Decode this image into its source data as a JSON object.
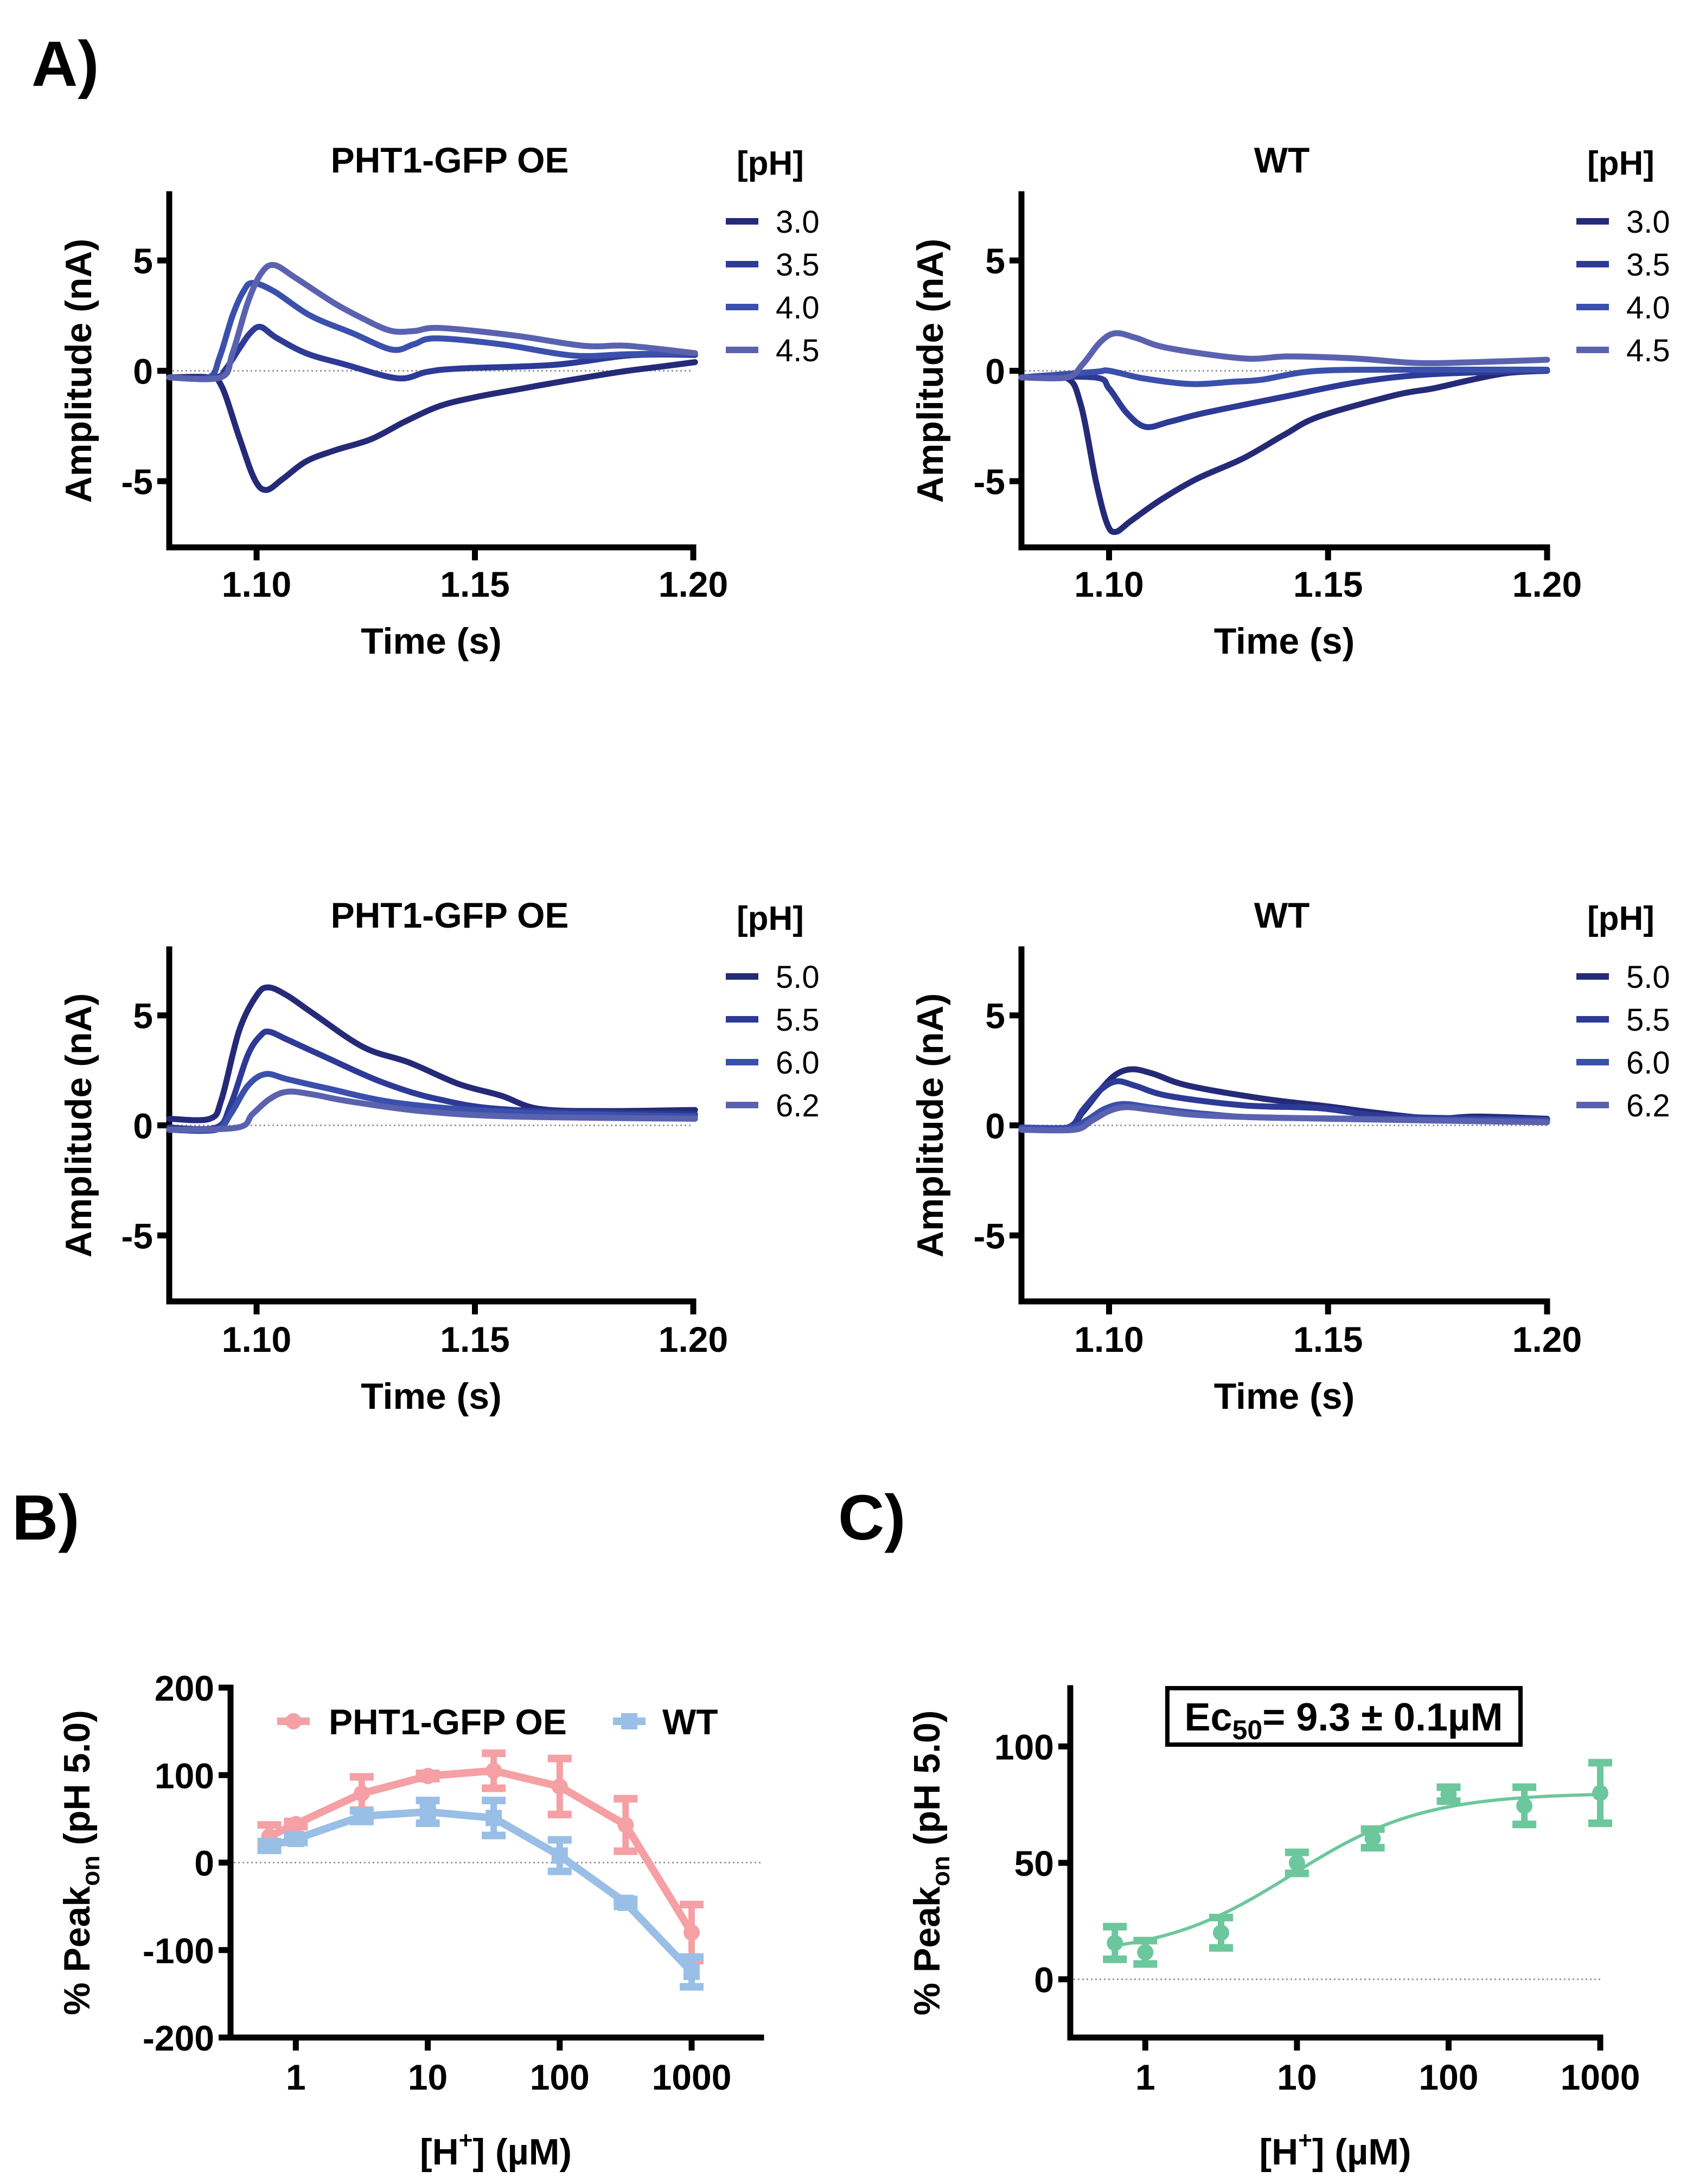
{
  "figure_labels": {
    "A": "A)",
    "B": "B)",
    "C": "C)"
  },
  "chart_data": [
    {
      "id": "A1",
      "type": "line",
      "title": "PHT1-GFP OE",
      "xlabel": "Time (s)",
      "ylabel": "Amplitude (nA)",
      "xlim": [
        1.08,
        1.2
      ],
      "ylim": [
        -8,
        8
      ],
      "xticks": [
        1.1,
        1.15,
        1.2
      ],
      "xtick_labels": [
        "1.10",
        "1.15",
        "1.20"
      ],
      "yticks": [
        5,
        0,
        -5
      ],
      "ytick_labels": [
        "5",
        "0",
        "-5"
      ],
      "zero_line": true,
      "legend_title": "[pH]",
      "legend_position": "right",
      "series": [
        {
          "name": "3.0",
          "color": "#252a78",
          "x": [
            1.08,
            1.089,
            1.092,
            1.096,
            1.0995,
            1.1022,
            1.106,
            1.1114,
            1.118,
            1.1262,
            1.134,
            1.1419,
            1.15,
            1.1593,
            1.168,
            1.1769,
            1.185,
            1.193,
            1.2004
          ],
          "y": [
            -0.3,
            -0.3,
            -0.7,
            -3.0,
            -4.9,
            -5.4,
            -4.9,
            -4.1,
            -3.6,
            -3.1,
            -2.3,
            -1.6,
            -1.2,
            -0.86,
            -0.55,
            -0.25,
            0.0,
            0.2,
            0.39
          ]
        },
        {
          "name": "3.5",
          "color": "#2d3a96",
          "x": [
            1.08,
            1.0905,
            1.093,
            1.096,
            1.0985,
            1.1009,
            1.1045,
            1.1114,
            1.12,
            1.1323,
            1.139,
            1.1463,
            1.1682,
            1.1856,
            1.2004
          ],
          "y": [
            -0.3,
            -0.3,
            0.1,
            1.0,
            1.7,
            1.99,
            1.5,
            0.79,
            0.3,
            -0.34,
            -0.05,
            0.1,
            0.27,
            0.7,
            0.72
          ]
        },
        {
          "name": "4.0",
          "color": "#3a50ac",
          "x": [
            1.08,
            1.089,
            1.0915,
            1.0945,
            1.097,
            1.0991,
            1.104,
            1.1123,
            1.122,
            1.131,
            1.136,
            1.141,
            1.156,
            1.1725,
            1.185,
            1.2004
          ],
          "y": [
            -0.3,
            -0.3,
            0.6,
            2.5,
            3.6,
            3.98,
            3.6,
            2.5,
            1.7,
            0.96,
            1.2,
            1.47,
            1.2,
            0.69,
            0.75,
            0.8
          ]
        },
        {
          "name": "4.5",
          "color": "#5a62b0",
          "x": [
            1.08,
            1.0918,
            1.0945,
            1.098,
            1.101,
            1.104,
            1.109,
            1.1175,
            1.124,
            1.1306,
            1.136,
            1.142,
            1.159,
            1.175,
            1.185,
            1.2004
          ],
          "y": [
            -0.3,
            -0.3,
            0.8,
            3.1,
            4.4,
            4.79,
            4.2,
            3.1,
            2.4,
            1.82,
            1.8,
            1.94,
            1.6,
            1.13,
            1.13,
            0.8
          ]
        }
      ]
    },
    {
      "id": "A2",
      "type": "line",
      "title": "WT",
      "xlabel": "Time (s)",
      "ylabel": "Amplitude (nA)",
      "xlim": [
        1.08,
        1.2
      ],
      "ylim": [
        -8,
        8
      ],
      "xticks": [
        1.1,
        1.15,
        1.2
      ],
      "xtick_labels": [
        "1.10",
        "1.15",
        "1.20"
      ],
      "yticks": [
        5,
        0,
        -5
      ],
      "ytick_labels": [
        "5",
        "0",
        "-5"
      ],
      "zero_line": true,
      "legend_title": "[pH]",
      "legend_position": "right",
      "series": [
        {
          "name": "3.0",
          "color": "#252a78",
          "x": [
            1.08,
            1.09,
            1.0935,
            1.097,
            1.0995,
            1.1015,
            1.105,
            1.1117,
            1.12,
            1.1307,
            1.14,
            1.148,
            1.1654,
            1.174,
            1.1827,
            1.191,
            1.2
          ],
          "y": [
            -0.3,
            -0.3,
            -1.5,
            -5.0,
            -6.9,
            -7.3,
            -6.8,
            -5.86,
            -4.9,
            -3.96,
            -2.9,
            -2.07,
            -1.1,
            -0.8,
            -0.41,
            -0.1,
            0.0
          ]
        },
        {
          "name": "3.5",
          "color": "#2d3a96",
          "x": [
            1.08,
            1.0967,
            1.1,
            1.104,
            1.1083,
            1.114,
            1.122,
            1.1394,
            1.1567,
            1.174,
            1.2
          ],
          "y": [
            -0.3,
            -0.3,
            -0.8,
            -1.9,
            -2.54,
            -2.3,
            -1.9,
            -1.2,
            -0.52,
            -0.15,
            0.0
          ]
        },
        {
          "name": "4.0",
          "color": "#3a50ac",
          "x": [
            1.08,
            1.0967,
            1.1,
            1.108,
            1.1186,
            1.128,
            1.135,
            1.148,
            1.174,
            1.2
          ],
          "y": [
            -0.3,
            -0.05,
            0.0,
            -0.35,
            -0.6,
            -0.5,
            -0.4,
            0.0,
            0.05,
            0.05
          ]
        },
        {
          "name": "4.5",
          "color": "#5a62b0",
          "x": [
            1.08,
            1.0904,
            1.094,
            1.098,
            1.1014,
            1.106,
            1.1135,
            1.1307,
            1.141,
            1.156,
            1.1706,
            1.185,
            1.2
          ],
          "y": [
            -0.3,
            -0.3,
            0.3,
            1.3,
            1.7,
            1.5,
            1.03,
            0.56,
            0.65,
            0.56,
            0.35,
            0.4,
            0.5
          ]
        }
      ]
    },
    {
      "id": "A3",
      "type": "line",
      "title": "PHT1-GFP OE",
      "xlabel": "Time (s)",
      "ylabel": "Amplitude (nA)",
      "xlim": [
        1.08,
        1.2
      ],
      "ylim": [
        -8,
        8
      ],
      "xticks": [
        1.1,
        1.15,
        1.2
      ],
      "xtick_labels": [
        "1.10",
        "1.15",
        "1.20"
      ],
      "yticks": [
        5,
        0,
        -5
      ],
      "ytick_labels": [
        "5",
        "0",
        "-5"
      ],
      "zero_line": true,
      "legend_title": "[pH]",
      "legend_position": "right",
      "series": [
        {
          "name": "5.0",
          "color": "#252a78",
          "x": [
            1.08,
            1.0893,
            1.092,
            1.096,
            1.1,
            1.1027,
            1.107,
            1.1132,
            1.1245,
            1.135,
            1.1463,
            1.156,
            1.1647,
            1.18,
            1.2004
          ],
          "y": [
            0.3,
            0.3,
            1.2,
            4.3,
            5.9,
            6.27,
            5.9,
            5.05,
            3.55,
            2.85,
            1.88,
            1.35,
            0.75,
            0.65,
            0.7
          ]
        },
        {
          "name": "5.5",
          "color": "#2d3a96",
          "x": [
            1.08,
            1.0907,
            1.094,
            1.098,
            1.101,
            1.103,
            1.107,
            1.1158,
            1.1289,
            1.142,
            1.159,
            1.2004
          ],
          "y": [
            -0.1,
            -0.1,
            0.9,
            3.2,
            4.1,
            4.25,
            3.9,
            3.1,
            1.95,
            1.17,
            0.7,
            0.5
          ]
        },
        {
          "name": "6.0",
          "color": "#3a50ac",
          "x": [
            1.08,
            1.0907,
            1.094,
            1.098,
            1.102,
            1.107,
            1.1158,
            1.133,
            1.159,
            1.2004
          ],
          "y": [
            -0.2,
            -0.2,
            0.5,
            1.8,
            2.33,
            2.1,
            1.7,
            1.0,
            0.6,
            0.4
          ]
        },
        {
          "name": "6.2",
          "color": "#5a62b0",
          "x": [
            1.08,
            1.0956,
            1.099,
            1.103,
            1.1071,
            1.113,
            1.121,
            1.1376,
            1.159,
            1.2004
          ],
          "y": [
            -0.2,
            -0.1,
            0.5,
            1.2,
            1.53,
            1.4,
            1.1,
            0.65,
            0.4,
            0.3
          ]
        }
      ]
    },
    {
      "id": "A4",
      "type": "line",
      "title": "WT",
      "xlabel": "Time (s)",
      "ylabel": "Amplitude (nA)",
      "xlim": [
        1.08,
        1.2
      ],
      "ylim": [
        -8,
        8
      ],
      "xticks": [
        1.1,
        1.15,
        1.2
      ],
      "xtick_labels": [
        "1.10",
        "1.15",
        "1.20"
      ],
      "yticks": [
        5,
        0,
        -5
      ],
      "ytick_labels": [
        "5",
        "0",
        "-5"
      ],
      "zero_line": true,
      "legend_title": "[pH]",
      "legend_position": "right",
      "series": [
        {
          "name": "5.0",
          "color": "#252a78",
          "x": [
            1.08,
            1.0905,
            1.094,
            1.098,
            1.1015,
            1.1052,
            1.11,
            1.118,
            1.135,
            1.15,
            1.161,
            1.174,
            1.184,
            1.2
          ],
          "y": [
            -0.1,
            -0.1,
            0.6,
            1.6,
            2.3,
            2.55,
            2.35,
            1.81,
            1.22,
            0.86,
            0.57,
            0.31,
            0.4,
            0.3
          ]
        },
        {
          "name": "5.5",
          "color": "#2d3a96",
          "x": [
            1.08,
            1.0905,
            1.094,
            1.098,
            1.1017,
            1.106,
            1.1135,
            1.1307,
            1.148,
            1.165,
            1.2
          ],
          "y": [
            -0.1,
            -0.1,
            0.7,
            1.6,
            2.0,
            1.8,
            1.34,
            0.91,
            0.78,
            0.4,
            0.26
          ]
        },
        {
          "name": "6.0",
          "color": "#3a50ac",
          "x": [
            1.08,
            1.091,
            1.095,
            1.099,
            1.1034,
            1.11,
            1.122,
            1.139,
            1.2
          ],
          "y": [
            -0.1,
            -0.1,
            0.25,
            0.75,
            0.97,
            0.8,
            0.52,
            0.34,
            0.22
          ]
        },
        {
          "name": "6.2",
          "color": "#5a62b0",
          "x": [
            1.08,
            1.092,
            1.096,
            1.1,
            1.104,
            1.11,
            1.122,
            1.15,
            1.2
          ],
          "y": [
            -0.2,
            -0.2,
            0.2,
            0.65,
            0.83,
            0.7,
            0.45,
            0.3,
            0.14
          ]
        }
      ]
    },
    {
      "id": "B",
      "type": "line",
      "title": "",
      "xlabel": "[H+] (µM)",
      "xlabel_main": "[H",
      "xlabel_sup": "+",
      "xlabel_rest": "] (µM)",
      "ylabel_main": "% Peak",
      "ylabel_sub": "on",
      "ylabel_rest": " (pH 5.0)",
      "xscale": "log",
      "xlim": [
        0.32,
        3500
      ],
      "ylim": [
        -200,
        200
      ],
      "xticks": [
        1,
        10,
        100,
        1000
      ],
      "xtick_labels": [
        "1",
        "10",
        "100",
        "1000"
      ],
      "yticks": [
        200,
        100,
        0,
        -100,
        -200
      ],
      "ytick_labels": [
        "200",
        "100",
        "0",
        "-100",
        "-200"
      ],
      "zero_line": true,
      "legend_position": "top",
      "series": [
        {
          "name": "PHT1-GFP OE",
          "color": "#f4a0a4",
          "marker": "circle",
          "x": [
            0.63,
            1,
            3.16,
            10,
            31.6,
            100,
            316,
            1000
          ],
          "y": [
            30,
            44,
            79,
            99,
            105,
            87,
            43,
            -80
          ],
          "err": [
            13,
            3,
            19,
            3,
            20,
            32,
            30,
            32
          ]
        },
        {
          "name": "WT",
          "color": "#99bfe6",
          "marker": "square",
          "x": [
            0.63,
            1,
            3.16,
            10,
            31.6,
            100,
            316,
            1000
          ],
          "y": [
            19,
            27,
            53,
            58,
            51,
            8,
            -46,
            -125
          ],
          "err": [
            5,
            4,
            6,
            13,
            20,
            18,
            4,
            17
          ]
        }
      ]
    },
    {
      "id": "C",
      "type": "scatter",
      "title": "",
      "xlabel": "[H+] (µM)",
      "xlabel_main": "[H",
      "xlabel_sup": "+",
      "xlabel_rest": "] (µM)",
      "ylabel_main": "% Peak",
      "ylabel_sub": "on",
      "ylabel_rest": " (pH 5.0)",
      "xscale": "log",
      "xlim": [
        0.32,
        1000
      ],
      "ylim": [
        -25,
        125
      ],
      "xticks": [
        1,
        10,
        100,
        1000
      ],
      "xtick_labels": [
        "1",
        "10",
        "100",
        "1000"
      ],
      "yticks": [
        100,
        50,
        0
      ],
      "ytick_labels": [
        "100",
        "50",
        "0"
      ],
      "zero_line": true,
      "annotation": {
        "prefix": "Ec",
        "sub": "50",
        "text": "= 9.3 ± 0.1µM"
      },
      "fit": {
        "model": "sigmoidal dose-response (log)",
        "bottom": 10,
        "top": 80,
        "ec50": 9.3,
        "hill": 1.0
      },
      "series": [
        {
          "name": "PHT1-GFP OE",
          "color": "#6cc79c",
          "marker": "circle",
          "x": [
            0.63,
            1,
            3.16,
            10,
            31.6,
            100,
            316,
            1000
          ],
          "y": [
            15.6,
            11.6,
            20,
            50,
            60.5,
            79.5,
            74.5,
            80
          ],
          "err": [
            7,
            5,
            6.5,
            4.5,
            4,
            3,
            8,
            13
          ]
        }
      ]
    }
  ]
}
